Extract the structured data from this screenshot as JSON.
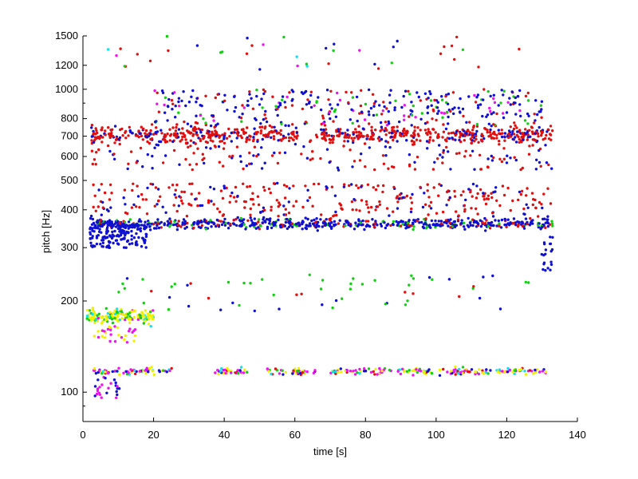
{
  "chart_data": {
    "type": "scatter",
    "title": "",
    "xlabel": "time [s]",
    "ylabel": "pitch [Hz]",
    "xlim": [
      0,
      140
    ],
    "ylim": [
      80,
      1500
    ],
    "y_scale": "log",
    "grid": false,
    "legend": "none",
    "x_ticks": [
      "0",
      "20",
      "40",
      "60",
      "80",
      "100",
      "120",
      "140"
    ],
    "y_ticks": [
      "100",
      "200",
      "300",
      "400",
      "500",
      "600",
      "700",
      "800",
      "1000",
      "1200",
      "1500"
    ],
    "colors": {
      "red": "#e01010",
      "blue": "#1010d0",
      "green": "#10d010",
      "yellow": "#f0f000",
      "magenta": "#f010f0",
      "cyan": "#10e0f0"
    },
    "series": [
      {
        "color": "red",
        "description": "cluster near 700 Hz",
        "x_range": [
          1,
          133
        ],
        "center_hz": 710,
        "spread": 0.09
      },
      {
        "color": "blue",
        "description": "cluster near 360 Hz",
        "x_range": [
          2,
          133
        ],
        "center_hz": 360,
        "spread": 0.06
      },
      {
        "color": "red",
        "description": "scatter 380-480 Hz",
        "x_range": [
          2,
          133
        ],
        "center_hz": 420,
        "spread": 0.08
      },
      {
        "color": "blue",
        "description": "scatter 750-1000 Hz",
        "x_range": [
          20,
          130
        ],
        "center_hz": 850,
        "spread": 0.08
      },
      {
        "color": "yellow",
        "description": "cluster near 180 Hz",
        "x_range": [
          2,
          20
        ],
        "center_hz": 178,
        "spread": 0.05
      },
      {
        "color": "mixed",
        "description": "cluster near 118 Hz",
        "x_range": [
          3,
          132
        ],
        "center_hz": 117,
        "spread": 0.03
      }
    ]
  }
}
